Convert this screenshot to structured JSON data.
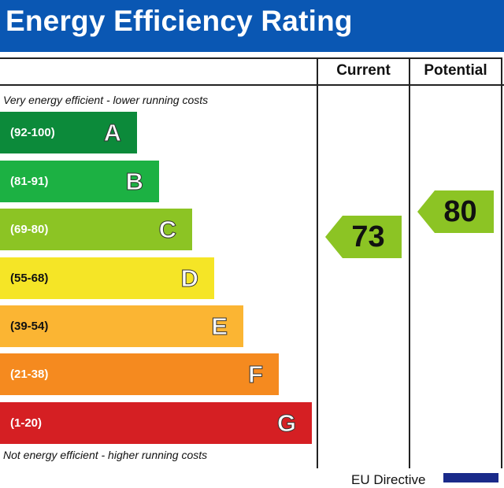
{
  "title": "Energy Efficiency Rating",
  "columns": {
    "current": "Current",
    "potential": "Potential"
  },
  "top_caption": "Very energy efficient - lower running costs",
  "bottom_caption": "Not energy efficient - higher running costs",
  "footer": "EU Directive",
  "colors": {
    "header": "#0a57b3",
    "flag": "#1a2a8a"
  },
  "chart_data": {
    "type": "bar",
    "categories": [
      "A",
      "B",
      "C",
      "D",
      "E",
      "F",
      "G"
    ],
    "ranges": [
      "(92-100)",
      "(81-91)",
      "(69-80)",
      "(55-68)",
      "(39-54)",
      "(21-38)",
      "(1-20)"
    ],
    "band_colors": [
      "#0c8a3a",
      "#1cb143",
      "#8cc424",
      "#f5e526",
      "#fbb533",
      "#f58a1f",
      "#d51f23"
    ],
    "range_text_colors": [
      "#ffffff",
      "#ffffff",
      "#ffffff",
      "#111111",
      "#111111",
      "#ffffff",
      "#ffffff"
    ],
    "current": {
      "value": 73,
      "band": "C"
    },
    "potential": {
      "value": 80,
      "band": "C"
    },
    "arrow_color": "#8cc424"
  }
}
